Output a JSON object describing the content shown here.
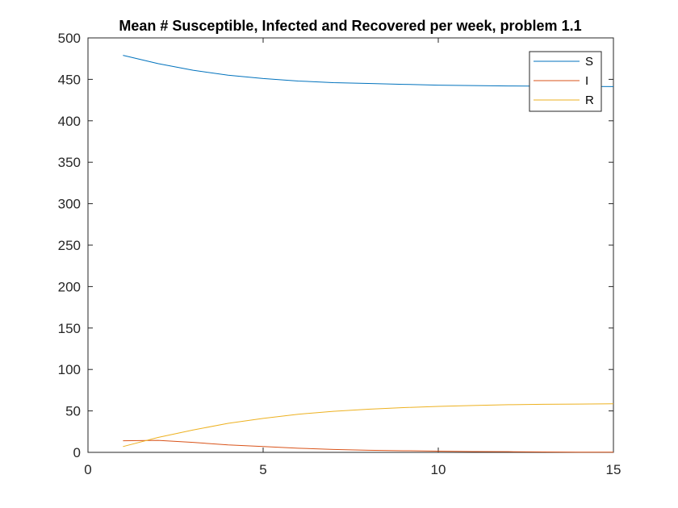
{
  "chart_data": {
    "type": "line",
    "title": "Mean # Susceptible, Infected and Recovered per week, problem 1.1",
    "xlabel": "",
    "ylabel": "",
    "xlim": [
      0,
      15
    ],
    "ylim": [
      0,
      500
    ],
    "xticks": [
      0,
      5,
      10,
      15
    ],
    "yticks": [
      0,
      50,
      100,
      150,
      200,
      250,
      300,
      350,
      400,
      450,
      500
    ],
    "grid": false,
    "legend_position": "top-right",
    "x": [
      1,
      2,
      3,
      4,
      5,
      6,
      7,
      8,
      9,
      10,
      11,
      12,
      13,
      14,
      15
    ],
    "series": [
      {
        "name": "S",
        "color": "#0072BD",
        "values": [
          479,
          469,
          461,
          455,
          451,
          448,
          446,
          445,
          444,
          443,
          442.5,
          442,
          441.7,
          441.5,
          441.3
        ]
      },
      {
        "name": "I",
        "color": "#D95319",
        "values": [
          14,
          14.5,
          12,
          9,
          7,
          5,
          3.5,
          2.5,
          2,
          1.5,
          1,
          0.8,
          0.5,
          0.3,
          0.2
        ]
      },
      {
        "name": "R",
        "color": "#EDB120",
        "values": [
          7,
          18,
          27,
          35,
          41,
          46,
          49.5,
          52,
          54,
          55.5,
          56.5,
          57.5,
          58,
          58.3,
          58.6
        ]
      }
    ]
  }
}
